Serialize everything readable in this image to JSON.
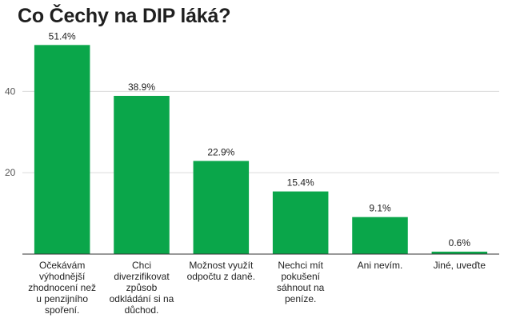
{
  "title": "Co Čechy na DIP láká?",
  "chart_data": {
    "type": "bar",
    "title": "Co Čechy na DIP láká?",
    "xlabel": "",
    "ylabel": "",
    "ylim": [
      0,
      55
    ],
    "yticks": [
      20,
      40
    ],
    "grid": true,
    "bar_color": "#0aa64a",
    "categories": [
      [
        "Očekávám",
        "výhodnější",
        "zhodnocení než",
        "u penzijního",
        "spoření."
      ],
      [
        "Chci",
        "diverzifikovat",
        "způsob",
        "odkládání si na",
        "důchod."
      ],
      [
        "Možnost využít",
        "odpočtu z daně."
      ],
      [
        "Nechci mít",
        "pokušení",
        "sáhnout na",
        "peníze."
      ],
      [
        "Ani nevím."
      ],
      [
        "Jiné, uveďte"
      ]
    ],
    "values": [
      51.4,
      38.9,
      22.9,
      15.4,
      9.1,
      0.6
    ],
    "value_labels": [
      "51.4%",
      "38.9%",
      "22.9%",
      "15.4%",
      "9.1%",
      "0.6%"
    ]
  }
}
